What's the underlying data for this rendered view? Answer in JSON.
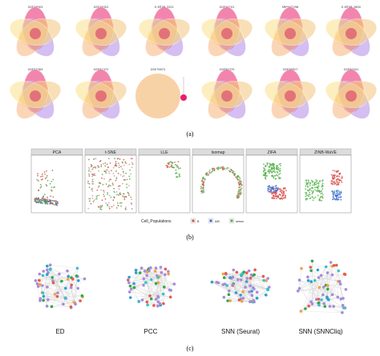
{
  "panel_a": {
    "row1": [
      "GSE29903",
      "GSE29352",
      "E-MTAB-3321",
      "GSE34741",
      "SRP047296",
      "E-MTAB-2600"
    ],
    "row2": [
      "GSE52583",
      "GSE81372",
      "GSE75872",
      "GSE84370",
      "GSE58827",
      "GSE60041"
    ],
    "caption": "(a)"
  },
  "panel_b": {
    "methods": [
      "PCA",
      "t-SNE",
      "LLE",
      "Isomap",
      "ZIFA",
      "ZINB-WaVE"
    ],
    "legend_title": "Cell_Populations",
    "legend_items": [
      {
        "label": "B",
        "color": "#d9534f"
      },
      {
        "label": "A/B",
        "color": "#3a6fd1"
      },
      {
        "label": "serum",
        "color": "#55b04a"
      }
    ],
    "caption": "(b)"
  },
  "panel_c": {
    "networks": [
      "ED",
      "PCC",
      "SNN (Seurat)",
      "SNN (SNNCliq)"
    ],
    "caption": "(c)"
  },
  "colors": {
    "venn": [
      "#e8206b",
      "#f3c57d",
      "#b388e6",
      "#f6b57c",
      "#fce08a"
    ],
    "strip": "#dcdcdc",
    "node_default": "#a78bd8"
  }
}
